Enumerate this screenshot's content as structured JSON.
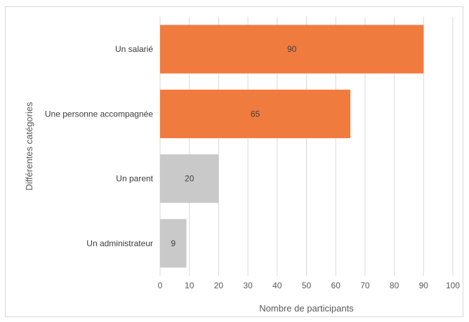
{
  "chart_data": {
    "type": "bar",
    "orientation": "horizontal",
    "categories": [
      "Un salarié",
      "Une personne accompagnée",
      "Un parent",
      "Un administrateur"
    ],
    "values": [
      90,
      65,
      20,
      9
    ],
    "bar_colors": [
      "#f07b3f",
      "#f07b3f",
      "#c9c9c9",
      "#c9c9c9"
    ],
    "data_labels": [
      "90",
      "65",
      "20",
      "9"
    ],
    "xlabel": "Nombre de participants",
    "ylabel": "Différentes catégories",
    "xlim": [
      0,
      100
    ],
    "x_ticks": [
      "0",
      "10",
      "20",
      "30",
      "40",
      "50",
      "60",
      "70",
      "80",
      "90",
      "100"
    ],
    "grid": "vertical",
    "legend": "none"
  }
}
